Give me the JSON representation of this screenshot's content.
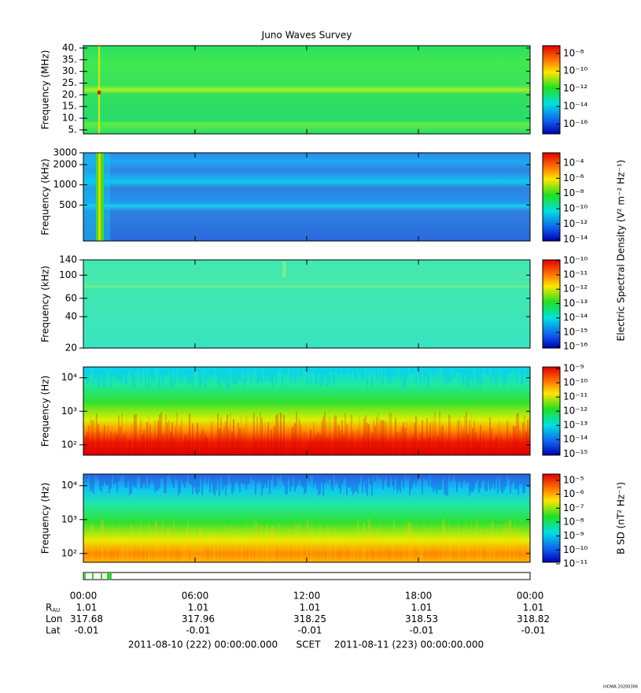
{
  "chart_data": [
    {
      "type": "heatmap",
      "title": "Juno Waves Survey",
      "ylabel": "Frequency (MHz)",
      "log_y": false,
      "ylim": [
        3.3,
        41
      ],
      "yticks": [
        {
          "value": 40,
          "label": "40."
        },
        {
          "value": 35,
          "label": "35."
        },
        {
          "value": 30,
          "label": "30."
        },
        {
          "value": 25,
          "label": "25."
        },
        {
          "value": 20,
          "label": "20."
        },
        {
          "value": 15,
          "label": "15."
        },
        {
          "value": 10,
          "label": "10."
        },
        {
          "value": 5,
          "label": "5."
        }
      ],
      "colorbar": {
        "log": true,
        "clim": [
          7.9e-18,
          7.4e-08
        ],
        "ticks": [
          {
            "value": 1e-08,
            "label": "10⁻⁸"
          },
          {
            "value": 1e-10,
            "label": "10⁻¹⁰"
          },
          {
            "value": 1e-12,
            "label": "10⁻¹²"
          },
          {
            "value": 1e-14,
            "label": "10⁻¹⁴"
          },
          {
            "value": 1e-16,
            "label": "10⁻¹⁶"
          }
        ]
      }
    },
    {
      "type": "heatmap",
      "ylabel": "Frequency (kHz)",
      "log_y": true,
      "ylim": [
        146,
        3000
      ],
      "yticks": [
        3000,
        2000,
        1000,
        500
      ],
      "colorbar": {
        "log": true,
        "clim": [
          6e-15,
          0.0022
        ],
        "ticks": [
          {
            "value": 0.0001,
            "label": "10⁻⁴"
          },
          {
            "value": 1e-06,
            "label": "10⁻⁶"
          },
          {
            "value": 1e-08,
            "label": "10⁻⁸"
          },
          {
            "value": 1e-10,
            "label": "10⁻¹⁰"
          },
          {
            "value": 1e-12,
            "label": "10⁻¹²"
          },
          {
            "value": 1e-14,
            "label": "10⁻¹⁴"
          }
        ]
      }
    },
    {
      "type": "heatmap",
      "ylabel": "Frequency (kHz)",
      "log_y": true,
      "ylim": [
        20,
        140
      ],
      "yticks": [
        140,
        100,
        60,
        40,
        20
      ],
      "colorbar": {
        "log": true,
        "clim": [
          8e-17,
          1.1e-10
        ],
        "ticks": [
          {
            "value": 1e-10,
            "label": "10⁻¹⁰"
          },
          {
            "value": 1e-11,
            "label": "10⁻¹¹"
          },
          {
            "value": 1e-12,
            "label": "10⁻¹²"
          },
          {
            "value": 1e-13,
            "label": "10⁻¹³"
          },
          {
            "value": 1e-14,
            "label": "10⁻¹⁴"
          },
          {
            "value": 1e-15,
            "label": "10⁻¹⁵"
          },
          {
            "value": 1e-16,
            "label": "10⁻¹⁶"
          }
        ]
      }
    },
    {
      "type": "heatmap",
      "ylabel": "Frequency (Hz)",
      "log_y": true,
      "ylim": [
        49,
        21000
      ],
      "yticks": [
        {
          "value": 10000,
          "label": "10⁴"
        },
        {
          "value": 1000,
          "label": "10³"
        },
        {
          "value": 100,
          "label": "10²"
        }
      ],
      "colorbar": {
        "log": true,
        "clim": [
          8e-16,
          1.3e-09
        ],
        "ticks": [
          {
            "value": 1e-09,
            "label": "10⁻⁹"
          },
          {
            "value": 1e-10,
            "label": "10⁻¹⁰"
          },
          {
            "value": 1e-11,
            "label": "10⁻¹¹"
          },
          {
            "value": 1e-12,
            "label": "10⁻¹²"
          },
          {
            "value": 1e-13,
            "label": "10⁻¹³"
          },
          {
            "value": 1e-14,
            "label": "10⁻¹⁴"
          },
          {
            "value": 1e-15,
            "label": "10⁻¹⁵"
          }
        ]
      }
    },
    {
      "type": "heatmap",
      "ylabel": "Frequency (Hz)",
      "log_y": true,
      "ylim": [
        55,
        22000
      ],
      "yticks": [
        {
          "value": 10000,
          "label": "10⁴"
        },
        {
          "value": 1000,
          "label": "10³"
        },
        {
          "value": 100,
          "label": "10²"
        }
      ],
      "colorbar": {
        "log": true,
        "clim": [
          1.3e-11,
          2.8e-05
        ],
        "ticks": [
          {
            "value": 1e-05,
            "label": "10⁻⁵"
          },
          {
            "value": 1e-06,
            "label": "10⁻⁶"
          },
          {
            "value": 1e-07,
            "label": "10⁻⁷"
          },
          {
            "value": 1e-08,
            "label": "10⁻⁸"
          },
          {
            "value": 1e-09,
            "label": "10⁻⁹"
          },
          {
            "value": 1e-10,
            "label": "10⁻¹⁰"
          },
          {
            "value": 1e-11,
            "label": "10⁻¹¹"
          }
        ]
      }
    }
  ],
  "colorbar_labels": [
    "Electric Spectral Density (V² m⁻² Hz⁻¹)",
    "B SD (nT² Hz⁻¹)"
  ],
  "time_ticks": [
    "00:00",
    "06:00",
    "12:00",
    "18:00",
    "00:00"
  ],
  "ephemeris": [
    {
      "name": "R",
      "subscript": "AU",
      "values": [
        1.01,
        1.01,
        1.01,
        1.01,
        1.01
      ]
    },
    {
      "name": "Lon",
      "values": [
        317.68,
        317.96,
        318.25,
        318.53,
        318.82
      ]
    },
    {
      "name": "Lat",
      "values": [
        -0.01,
        -0.01,
        -0.01,
        -0.01,
        -0.01
      ]
    }
  ],
  "footer": {
    "start": "2011-08-10 (222) 00:00:00.000",
    "scet": "SCET",
    "end": "2011-08-11 (223) 00:00:00.000"
  },
  "credit": "UIOWA 20200306"
}
